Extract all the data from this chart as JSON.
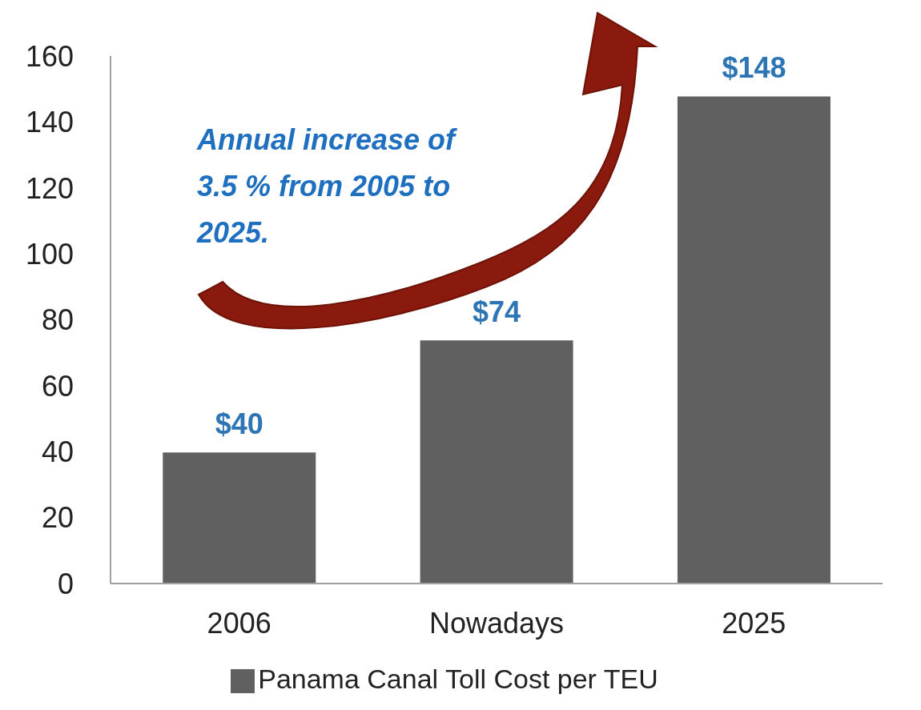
{
  "chart_data": {
    "type": "bar",
    "categories": [
      "2006",
      "Nowadays",
      "2025"
    ],
    "series": [
      {
        "name": "Panama Canal Toll Cost per TEU",
        "color": "#606060",
        "values": [
          40,
          74,
          148
        ],
        "value_labels": [
          "$40",
          "$74",
          "$148"
        ]
      }
    ],
    "ylim": [
      0,
      160
    ],
    "yticks": [
      0,
      20,
      40,
      60,
      80,
      100,
      120,
      140,
      160
    ],
    "grid": false,
    "legend": "bottom",
    "annotations": [
      "Annual increase of 3.5 % from 2005 to 2025."
    ]
  }
}
